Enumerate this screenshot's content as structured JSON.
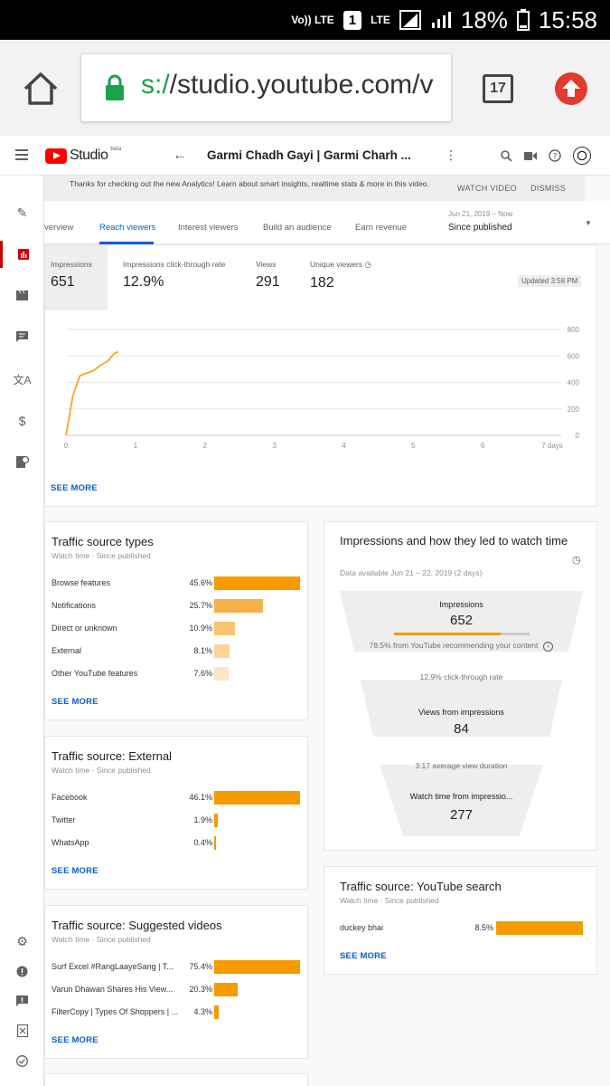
{
  "status_bar": {
    "volte": "Vo)) LTE",
    "sim": "1",
    "network": "LTE",
    "battery": "18%",
    "time": "15:58"
  },
  "browser": {
    "url_scheme": "s:/",
    "url_rest": "/studio.youtube.com/v",
    "tab_count": "17"
  },
  "header": {
    "logo_text": "Studio",
    "beta": "beta",
    "video_title": "Garmi Chadh Gayi | Garmi Charh ..."
  },
  "notice": {
    "message": "Thanks for checking out the new Analytics! Learn about smart insights, realtime stats & more in this video.",
    "watch_video": "WATCH VIDEO",
    "dismiss": "DISMISS"
  },
  "tabs": [
    {
      "label": "verview"
    },
    {
      "label": "Reach viewers"
    },
    {
      "label": "Interest viewers"
    },
    {
      "label": "Build an audience"
    },
    {
      "label": "Earn revenue"
    }
  ],
  "date_range": {
    "range": "Jun 21, 2019 – Now",
    "label": "Since published"
  },
  "kpis": [
    {
      "label": "Impressions",
      "value": "651"
    },
    {
      "label": "Impressions click-through rate",
      "value": "12.9%"
    },
    {
      "label": "Views",
      "value": "291"
    },
    {
      "label": "Unique viewers",
      "value": "182"
    }
  ],
  "updated": "Updated 3:58 PM",
  "see_more": "SEE MORE",
  "chart_data": {
    "type": "line",
    "title": "",
    "x_ticks": [
      "0",
      "1",
      "2",
      "3",
      "4",
      "5",
      "6",
      "7 days"
    ],
    "y_ticks": [
      "0",
      "200",
      "400",
      "600",
      "800"
    ],
    "ylim": [
      0,
      800
    ],
    "xlim": [
      0,
      7
    ],
    "series": [
      {
        "color": "#f5a623",
        "x": [
          0.0,
          0.1,
          0.2,
          0.3,
          0.4,
          0.5,
          0.6,
          0.7,
          0.75
        ],
        "y": [
          0,
          300,
          450,
          470,
          490,
          530,
          560,
          620,
          630
        ]
      }
    ]
  },
  "traffic_types": {
    "title": "Traffic source types",
    "subtitle": "Watch time · Since published",
    "rows": [
      {
        "name": "Browse features",
        "pct": "45.6%",
        "value": 45.6
      },
      {
        "name": "Notifications",
        "pct": "25.7%",
        "value": 25.7
      },
      {
        "name": "Direct or unknown",
        "pct": "10.9%",
        "value": 10.9
      },
      {
        "name": "External",
        "pct": "8.1%",
        "value": 8.1
      },
      {
        "name": "Other YouTube features",
        "pct": "7.6%",
        "value": 7.6
      }
    ]
  },
  "traffic_external": {
    "title": "Traffic source: External",
    "subtitle": "Watch time · Since published",
    "rows": [
      {
        "name": "Facebook",
        "pct": "46.1%",
        "value": 46.1
      },
      {
        "name": "Twitter",
        "pct": "1.9%",
        "value": 1.9
      },
      {
        "name": "WhatsApp",
        "pct": "0.4%",
        "value": 0.4
      }
    ]
  },
  "traffic_suggested": {
    "title": "Traffic source: Suggested videos",
    "subtitle": "Watch time · Since published",
    "rows": [
      {
        "name": "Surf Excel #RangLaayeSang | T...",
        "pct": "75.4%",
        "value": 75.4
      },
      {
        "name": "Varun Dhawan Shares His View...",
        "pct": "20.3%",
        "value": 20.3
      },
      {
        "name": "FilterCopy | Types Of Shoppers | ...",
        "pct": "4.3%",
        "value": 4.3
      }
    ]
  },
  "funnel": {
    "title": "Impressions and how they led to watch time",
    "subtitle": "Data available Jun 21 – 22, 2019 (2 days)",
    "impressions_label": "Impressions",
    "impressions_value": "652",
    "impressions_note": "78.5% from YouTube recommending your content",
    "ctr_note": "12.9% click-through rate",
    "views_label": "Views from impressions",
    "views_value": "84",
    "avd_note": "3:17 average view duration",
    "watch_label": "Watch time from impressio...",
    "watch_value": "277",
    "recommend_fraction": 0.785
  },
  "traffic_search": {
    "title": "Traffic source: YouTube search",
    "subtitle": "Watch time · Since published",
    "rows": [
      {
        "name": "duckey bhai",
        "pct": "8.5%",
        "value": 8.5
      }
    ]
  }
}
